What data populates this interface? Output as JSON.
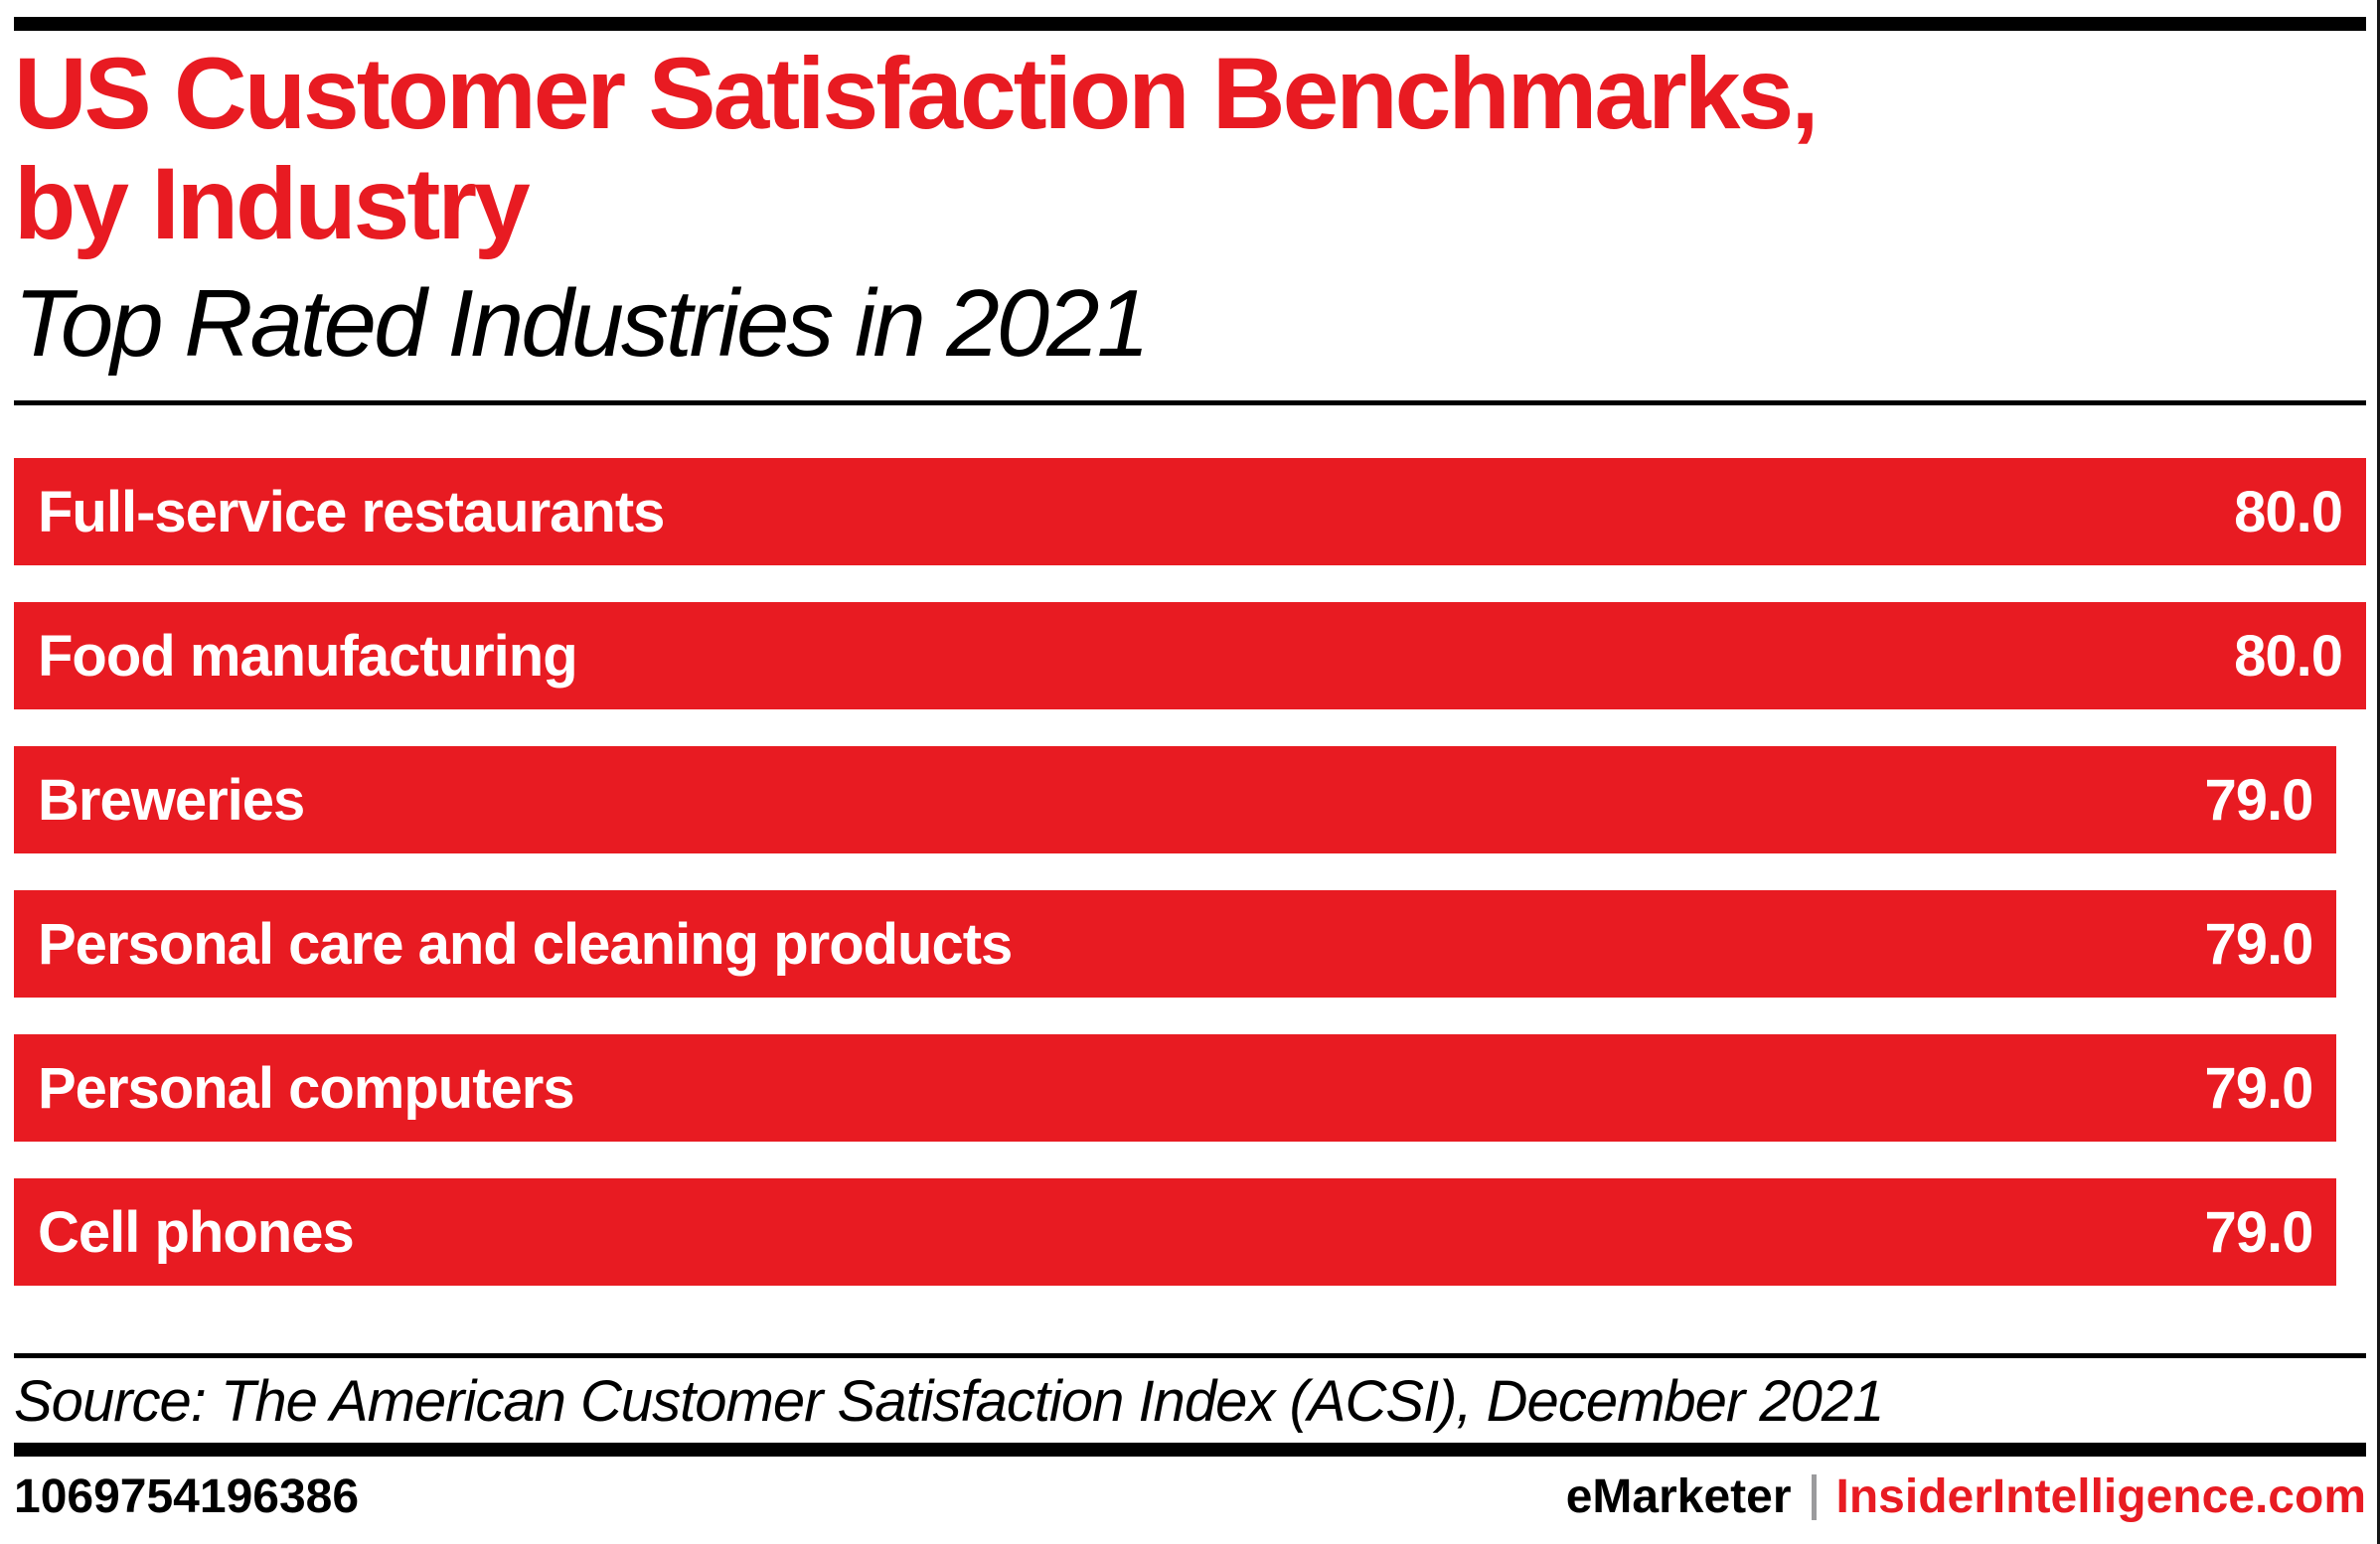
{
  "page": {
    "title_line1": "US Customer Satisfaction Benchmarks,",
    "title_line2": "by Industry",
    "subtitle": "Top Rated Industries in 2021",
    "source": "Source: The American Customer Satisfaction Index (ACSI), December 2021",
    "footer": {
      "chart_id": "1069754196386",
      "brand": "eMarketer",
      "site": "InsiderIntelligence.com"
    },
    "colors": {
      "accent_red": "#e81b22",
      "bar_red": "#e81b22",
      "bar_label_white": "#ffffff",
      "divider_gray": "#9b9b9d",
      "rule_black": "#000000"
    }
  },
  "chart_data": {
    "type": "bar",
    "orientation": "horizontal",
    "title": "US Customer Satisfaction Benchmarks, by Industry",
    "subtitle": "Top Rated Industries in 2021",
    "categories": [
      "Full-service restaurants",
      "Food manufacturing",
      "Breweries",
      "Personal care and cleaning products",
      "Personal computers",
      "Cell phones"
    ],
    "values": [
      80.0,
      80.0,
      79.0,
      79.0,
      79.0,
      79.0
    ],
    "value_labels": [
      "80.0",
      "80.0",
      "79.0",
      "79.0",
      "79.0",
      "79.0"
    ],
    "xlim": [
      0,
      80
    ],
    "grid": false,
    "legend": "none",
    "bar_color": "#e81b22",
    "value_label_position": "inside-end",
    "category_label_position": "inside-start"
  }
}
